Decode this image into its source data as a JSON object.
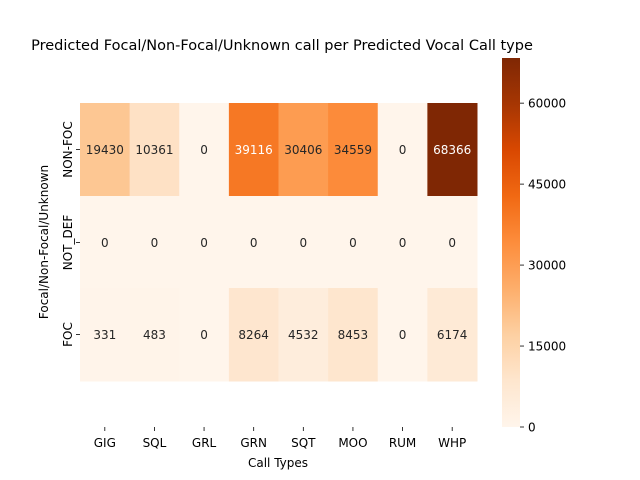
{
  "chart_data": {
    "type": "heatmap",
    "title": "Predicted Focal/Non-Focal/Unknown call per Predicted Vocal Call type",
    "xlabel": "Call Types",
    "ylabel": "Focal/Non-Focal/Unknown",
    "x_categories": [
      "GIG",
      "SQL",
      "GRL",
      "GRN",
      "SQT",
      "MOO",
      "RUM",
      "WHP"
    ],
    "y_categories": [
      "NON-FOC",
      "NOT_DEF",
      "FOC"
    ],
    "values": [
      [
        19430,
        10361,
        0,
        39116,
        30406,
        34559,
        0,
        68366
      ],
      [
        0,
        0,
        0,
        0,
        0,
        0,
        0,
        0
      ],
      [
        331,
        483,
        0,
        8264,
        4532,
        8453,
        0,
        6174
      ]
    ],
    "colorbar": {
      "min": 0,
      "max": 68366,
      "ticks": [
        0,
        15000,
        30000,
        45000,
        60000
      ],
      "colormap": "Oranges"
    },
    "grid": false
  }
}
